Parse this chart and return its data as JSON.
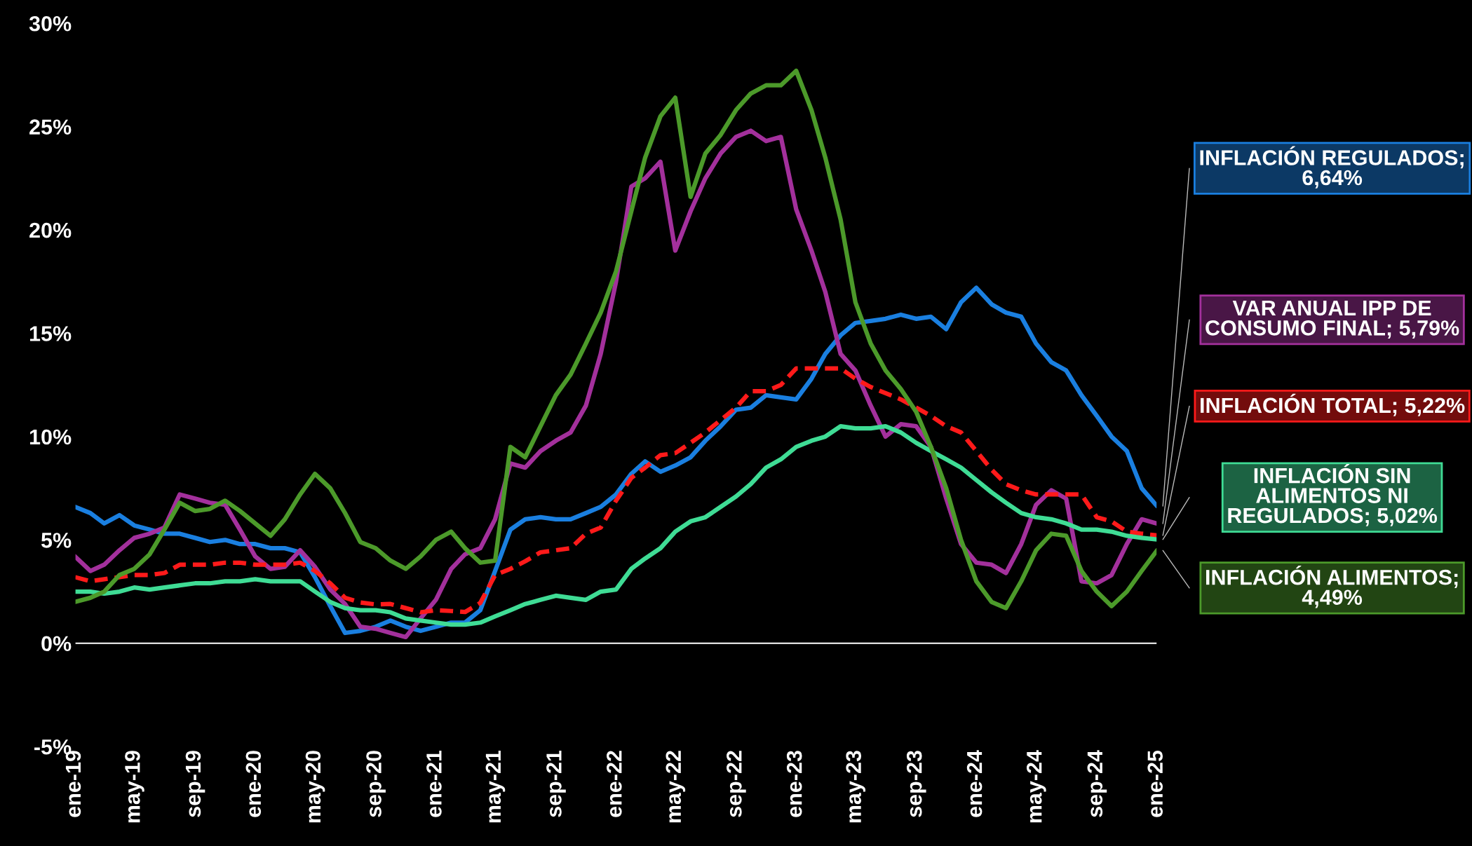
{
  "chart_data": {
    "type": "line",
    "x": [
      "2019-01",
      "2019-02",
      "2019-03",
      "2019-04",
      "2019-05",
      "2019-06",
      "2019-07",
      "2019-08",
      "2019-09",
      "2019-10",
      "2019-11",
      "2019-12",
      "2020-01",
      "2020-02",
      "2020-03",
      "2020-04",
      "2020-05",
      "2020-06",
      "2020-07",
      "2020-08",
      "2020-09",
      "2020-10",
      "2020-11",
      "2020-12",
      "2021-01",
      "2021-02",
      "2021-03",
      "2021-04",
      "2021-05",
      "2021-06",
      "2021-07",
      "2021-08",
      "2021-09",
      "2021-10",
      "2021-11",
      "2021-12",
      "2022-01",
      "2022-02",
      "2022-03",
      "2022-04",
      "2022-05",
      "2022-06",
      "2022-07",
      "2022-08",
      "2022-09",
      "2022-10",
      "2022-11",
      "2022-12",
      "2023-01",
      "2023-02",
      "2023-03",
      "2023-04",
      "2023-05",
      "2023-06",
      "2023-07",
      "2023-08",
      "2023-09",
      "2023-10",
      "2023-11",
      "2023-12",
      "2024-01",
      "2024-02",
      "2024-03",
      "2024-04",
      "2024-05",
      "2024-06",
      "2024-07",
      "2024-08",
      "2024-09",
      "2024-10",
      "2024-11",
      "2024-12",
      "2025-01"
    ],
    "series": [
      {
        "name": "INFLACIÓN REGULADOS; 6,64%",
        "color": "#1a7fe0",
        "line_style": "solid",
        "values": [
          6.6,
          6.3,
          5.8,
          6.2,
          5.7,
          5.5,
          5.3,
          5.3,
          5.1,
          4.9,
          5.0,
          4.8,
          4.8,
          4.6,
          4.6,
          4.4,
          3.2,
          1.8,
          0.5,
          0.6,
          0.8,
          1.1,
          0.8,
          0.6,
          0.8,
          1.0,
          1.0,
          1.6,
          3.5,
          5.5,
          6.0,
          6.1,
          6.0,
          6.0,
          6.3,
          6.6,
          7.2,
          8.2,
          8.8,
          8.3,
          8.6,
          9.0,
          9.8,
          10.5,
          11.3,
          11.4,
          12.0,
          11.9,
          11.8,
          12.8,
          14.0,
          14.9,
          15.5,
          15.6,
          15.7,
          15.9,
          15.7,
          15.8,
          15.2,
          16.5,
          17.2,
          16.4,
          16.0,
          15.8,
          14.5,
          13.6,
          13.2,
          12.0,
          11.0,
          10.0,
          9.3,
          7.5,
          6.64
        ]
      },
      {
        "name": "VAR ANUAL IPP DE CONSUMO FINAL; 5,79%",
        "color": "#a3309c",
        "line_style": "solid",
        "values": [
          4.2,
          3.5,
          3.8,
          4.5,
          5.1,
          5.3,
          5.6,
          7.2,
          7.0,
          6.8,
          6.7,
          5.5,
          4.2,
          3.6,
          3.7,
          4.5,
          3.7,
          2.6,
          1.9,
          0.8,
          0.7,
          0.5,
          0.3,
          1.2,
          2.1,
          3.6,
          4.3,
          4.6,
          6.0,
          8.7,
          8.5,
          9.3,
          9.8,
          10.2,
          11.5,
          14.0,
          17.5,
          22.1,
          22.5,
          23.3,
          19.0,
          20.9,
          22.5,
          23.7,
          24.5,
          24.8,
          24.3,
          24.5,
          21.0,
          19.0,
          17.0,
          14.0,
          13.2,
          11.5,
          10.0,
          10.6,
          10.5,
          9.5,
          7.0,
          4.8,
          3.9,
          3.8,
          3.4,
          4.8,
          6.7,
          7.4,
          7.0,
          3.0,
          2.9,
          3.3,
          4.8,
          6.0,
          5.79
        ]
      },
      {
        "name": "INFLACIÓN TOTAL; 5,22%",
        "color": "#ff1a1a",
        "line_style": "dashed",
        "values": [
          3.2,
          3.0,
          3.1,
          3.2,
          3.3,
          3.3,
          3.4,
          3.8,
          3.8,
          3.8,
          3.9,
          3.9,
          3.8,
          3.8,
          3.8,
          3.9,
          3.5,
          2.9,
          2.2,
          1.97,
          1.88,
          1.9,
          1.7,
          1.5,
          1.6,
          1.56,
          1.51,
          1.95,
          3.3,
          3.6,
          3.97,
          4.4,
          4.5,
          4.6,
          5.3,
          5.6,
          6.9,
          8.0,
          8.5,
          9.1,
          9.2,
          9.7,
          10.2,
          10.8,
          11.4,
          12.2,
          12.2,
          12.5,
          13.3,
          13.3,
          13.3,
          13.3,
          12.8,
          12.4,
          12.1,
          11.8,
          11.4,
          11.0,
          10.5,
          10.2,
          9.3,
          8.4,
          7.7,
          7.4,
          7.2,
          7.2,
          7.2,
          7.2,
          6.1,
          5.9,
          5.4,
          5.3,
          5.22
        ]
      },
      {
        "name": "INFLACIÓN SIN ALIMENTOS NI REGULADOS; 5,02%",
        "color": "#3fdc95",
        "line_style": "solid",
        "values": [
          2.5,
          2.5,
          2.4,
          2.5,
          2.7,
          2.6,
          2.7,
          2.8,
          2.9,
          2.9,
          3.0,
          3.0,
          3.1,
          3.0,
          3.0,
          3.0,
          2.5,
          2.0,
          1.7,
          1.6,
          1.6,
          1.5,
          1.2,
          1.1,
          1.0,
          0.9,
          0.9,
          1.0,
          1.3,
          1.6,
          1.9,
          2.1,
          2.3,
          2.2,
          2.1,
          2.5,
          2.6,
          3.6,
          4.1,
          4.6,
          5.4,
          5.9,
          6.1,
          6.6,
          7.1,
          7.7,
          8.5,
          8.9,
          9.5,
          9.8,
          10.0,
          10.5,
          10.4,
          10.4,
          10.5,
          10.2,
          9.7,
          9.3,
          8.9,
          8.5,
          7.9,
          7.3,
          6.8,
          6.3,
          6.1,
          6.0,
          5.8,
          5.5,
          5.5,
          5.4,
          5.2,
          5.1,
          5.02
        ]
      },
      {
        "name": "INFLACIÓN ALIMENTOS; 4,49%",
        "color": "#4c9a2a",
        "line_style": "solid",
        "values": [
          2.0,
          2.2,
          2.5,
          3.3,
          3.6,
          4.3,
          5.5,
          6.8,
          6.4,
          6.5,
          6.9,
          6.4,
          5.8,
          5.2,
          6.0,
          7.2,
          8.2,
          7.5,
          6.3,
          4.9,
          4.6,
          4.0,
          3.6,
          4.2,
          5.0,
          5.4,
          4.6,
          3.9,
          4.0,
          9.5,
          9.0,
          10.5,
          12.0,
          13.0,
          14.5,
          16.0,
          18.0,
          20.9,
          23.5,
          25.5,
          26.4,
          21.6,
          23.7,
          24.6,
          25.8,
          26.6,
          27.0,
          27.0,
          27.7,
          25.8,
          23.5,
          20.5,
          16.5,
          14.5,
          13.2,
          12.3,
          11.2,
          9.5,
          7.5,
          5.0,
          3.0,
          2.0,
          1.7,
          3.0,
          4.5,
          5.3,
          5.2,
          3.5,
          2.5,
          1.8,
          2.5,
          3.5,
          4.49
        ]
      }
    ],
    "ylim": [
      -5,
      30
    ],
    "yticks": [
      {
        "value": -5,
        "label": "-5%"
      },
      {
        "value": 0,
        "label": "0%"
      },
      {
        "value": 5,
        "label": "5%"
      },
      {
        "value": 10,
        "label": "10%"
      },
      {
        "value": 15,
        "label": "15%"
      },
      {
        "value": 20,
        "label": "20%"
      },
      {
        "value": 25,
        "label": "25%"
      },
      {
        "value": 30,
        "label": "30%"
      }
    ],
    "xlim": [
      "2019-01",
      "2025-01"
    ],
    "xticks": [
      {
        "value": "2019-01",
        "label": "ene-19"
      },
      {
        "value": "2019-05",
        "label": "may-19"
      },
      {
        "value": "2019-09",
        "label": "sep-19"
      },
      {
        "value": "2020-01",
        "label": "ene-20"
      },
      {
        "value": "2020-05",
        "label": "may-20"
      },
      {
        "value": "2020-09",
        "label": "sep-20"
      },
      {
        "value": "2021-01",
        "label": "ene-21"
      },
      {
        "value": "2021-05",
        "label": "may-21"
      },
      {
        "value": "2021-09",
        "label": "sep-21"
      },
      {
        "value": "2022-01",
        "label": "ene-22"
      },
      {
        "value": "2022-05",
        "label": "may-22"
      },
      {
        "value": "2022-09",
        "label": "sep-22"
      },
      {
        "value": "2023-01",
        "label": "ene-23"
      },
      {
        "value": "2023-05",
        "label": "may-23"
      },
      {
        "value": "2023-09",
        "label": "sep-23"
      },
      {
        "value": "2024-01",
        "label": "ene-24"
      },
      {
        "value": "2024-05",
        "label": "may-24"
      },
      {
        "value": "2024-09",
        "label": "sep-24"
      },
      {
        "value": "2025-01",
        "label": "ene-25"
      }
    ],
    "ref_lines": [
      {
        "axis": "y",
        "value": 0,
        "color": "#ffffff",
        "line_style": "solid"
      }
    ],
    "grid": false,
    "legend": false,
    "marker": "none"
  }
}
